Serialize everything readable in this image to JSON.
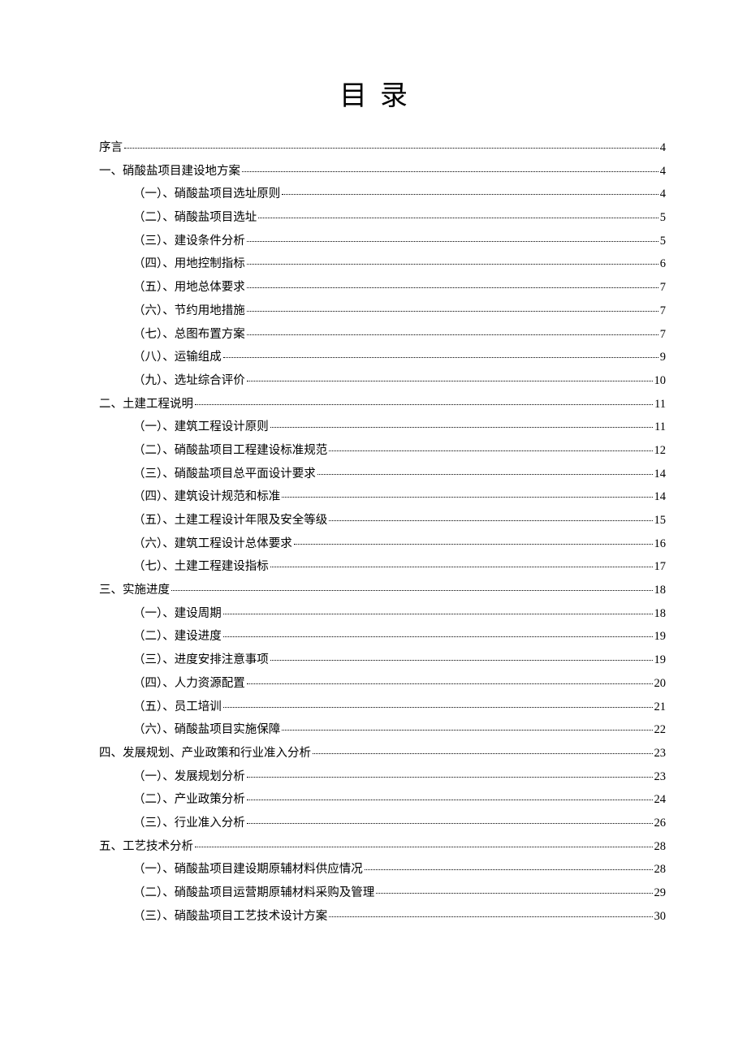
{
  "title": "目录",
  "entries": [
    {
      "indent": 0,
      "label": "序言",
      "page": "4"
    },
    {
      "indent": 0,
      "label": "一、硝酸盐项目建设地方案",
      "page": "4"
    },
    {
      "indent": 1,
      "label": "（一）、硝酸盐项目选址原则",
      "page": "4"
    },
    {
      "indent": 1,
      "label": "（二）、硝酸盐项目选址",
      "page": "5"
    },
    {
      "indent": 1,
      "label": "（三）、建设条件分析",
      "page": "5"
    },
    {
      "indent": 1,
      "label": "（四）、用地控制指标",
      "page": "6"
    },
    {
      "indent": 1,
      "label": "（五）、用地总体要求",
      "page": "7"
    },
    {
      "indent": 1,
      "label": "（六）、节约用地措施",
      "page": "7"
    },
    {
      "indent": 1,
      "label": "（七）、总图布置方案",
      "page": "7"
    },
    {
      "indent": 1,
      "label": "（八）、运输组成",
      "page": "9"
    },
    {
      "indent": 1,
      "label": "（九）、选址综合评价",
      "page": "10"
    },
    {
      "indent": 0,
      "label": "二、土建工程说明",
      "page": "11"
    },
    {
      "indent": 1,
      "label": "（一）、建筑工程设计原则",
      "page": "11"
    },
    {
      "indent": 1,
      "label": "（二）、硝酸盐项目工程建设标准规范",
      "page": "12"
    },
    {
      "indent": 1,
      "label": "（三）、硝酸盐项目总平面设计要求",
      "page": "14"
    },
    {
      "indent": 1,
      "label": "（四）、建筑设计规范和标准",
      "page": "14"
    },
    {
      "indent": 1,
      "label": "（五）、土建工程设计年限及安全等级",
      "page": "15"
    },
    {
      "indent": 1,
      "label": "（六）、建筑工程设计总体要求",
      "page": "16"
    },
    {
      "indent": 1,
      "label": "（七）、土建工程建设指标",
      "page": "17"
    },
    {
      "indent": 0,
      "label": "三、实施进度",
      "page": "18"
    },
    {
      "indent": 1,
      "label": "（一）、建设周期",
      "page": "18"
    },
    {
      "indent": 1,
      "label": "（二）、建设进度",
      "page": "19"
    },
    {
      "indent": 1,
      "label": "（三）、进度安排注意事项",
      "page": "19"
    },
    {
      "indent": 1,
      "label": "（四）、人力资源配置",
      "page": "20"
    },
    {
      "indent": 1,
      "label": "（五）、员工培训",
      "page": "21"
    },
    {
      "indent": 1,
      "label": "（六）、硝酸盐项目实施保障",
      "page": "22"
    },
    {
      "indent": 0,
      "label": "四、发展规划、产业政策和行业准入分析",
      "page": "23"
    },
    {
      "indent": 1,
      "label": "（一）、发展规划分析",
      "page": "23"
    },
    {
      "indent": 1,
      "label": "（二）、产业政策分析",
      "page": "24"
    },
    {
      "indent": 1,
      "label": "（三）、行业准入分析",
      "page": "26"
    },
    {
      "indent": 0,
      "label": "五、工艺技术分析",
      "page": "28"
    },
    {
      "indent": 1,
      "label": "（一）、硝酸盐项目建设期原辅材料供应情况",
      "page": "28"
    },
    {
      "indent": 1,
      "label": "（二）、硝酸盐项目运营期原辅材料采购及管理",
      "page": "29"
    },
    {
      "indent": 1,
      "label": "（三）、硝酸盐项目工艺技术设计方案",
      "page": "30"
    }
  ]
}
